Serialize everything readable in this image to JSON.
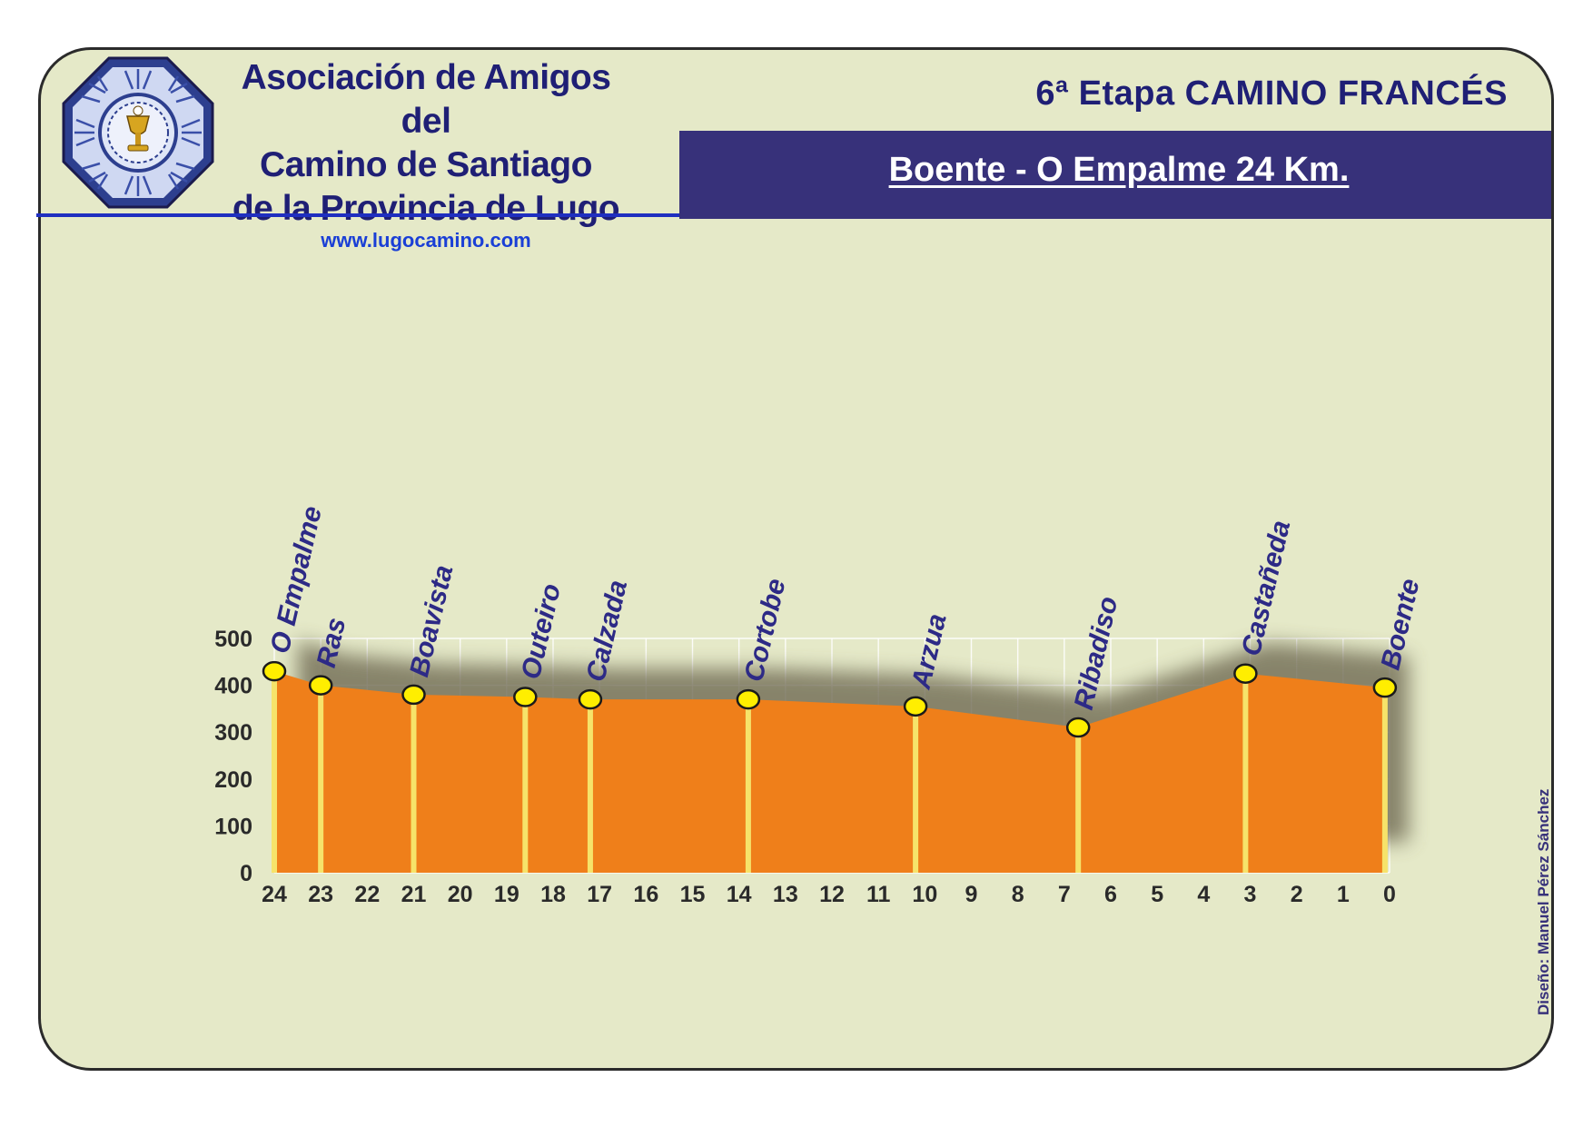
{
  "header": {
    "org_line1": "Asociación de Amigos del",
    "org_line2": "Camino de Santiago",
    "org_line3": "de la Provincia de Lugo",
    "url": "www.lugocamino.com",
    "stage_title": "6ª Etapa CAMINO FRANCÉS",
    "route": "Boente - O Empalme  24 Km."
  },
  "credit": "Diseño: Manuel Pérez Sánchez",
  "colors": {
    "card_background": "#e5e9c8",
    "title_navy": "#1f1f75",
    "banner": "#37317a",
    "profile_fill": "#ef7f1a",
    "marker_fill": "#ffee00",
    "post": "#f6e36a"
  },
  "chart_data": {
    "type": "area",
    "title": "",
    "xlabel": "",
    "ylabel": "",
    "xlim": [
      24,
      0
    ],
    "ylim": [
      0,
      500
    ],
    "x_ticks": [
      24,
      23,
      22,
      21,
      20,
      19,
      18,
      17,
      16,
      15,
      14,
      13,
      12,
      11,
      10,
      9,
      8,
      7,
      6,
      5,
      4,
      3,
      2,
      1,
      0
    ],
    "y_ticks": [
      0,
      100,
      200,
      300,
      400,
      500
    ],
    "grid": true,
    "series": [
      {
        "values": [
          {
            "x": 24,
            "y": 430
          },
          {
            "x": 23,
            "y": 400
          },
          {
            "x": 21,
            "y": 380
          },
          {
            "x": 18.6,
            "y": 375
          },
          {
            "x": 17.2,
            "y": 370
          },
          {
            "x": 13.8,
            "y": 370
          },
          {
            "x": 10.2,
            "y": 355
          },
          {
            "x": 6.7,
            "y": 310
          },
          {
            "x": 3.1,
            "y": 425
          },
          {
            "x": 0.1,
            "y": 395
          }
        ]
      }
    ],
    "places": [
      {
        "name": "O Empalme",
        "x": 24,
        "y": 430
      },
      {
        "name": "Ras",
        "x": 23,
        "y": 400
      },
      {
        "name": "Boavista",
        "x": 21,
        "y": 380
      },
      {
        "name": "Outeiro",
        "x": 18.6,
        "y": 375
      },
      {
        "name": "Calzada",
        "x": 17.2,
        "y": 370
      },
      {
        "name": "Cortobe",
        "x": 13.8,
        "y": 370
      },
      {
        "name": "Arzua",
        "x": 10.2,
        "y": 355
      },
      {
        "name": "Ribadiso",
        "x": 6.7,
        "y": 310
      },
      {
        "name": "Castañeda",
        "x": 3.1,
        "y": 425
      },
      {
        "name": "Boente",
        "x": 0.1,
        "y": 395
      }
    ]
  }
}
